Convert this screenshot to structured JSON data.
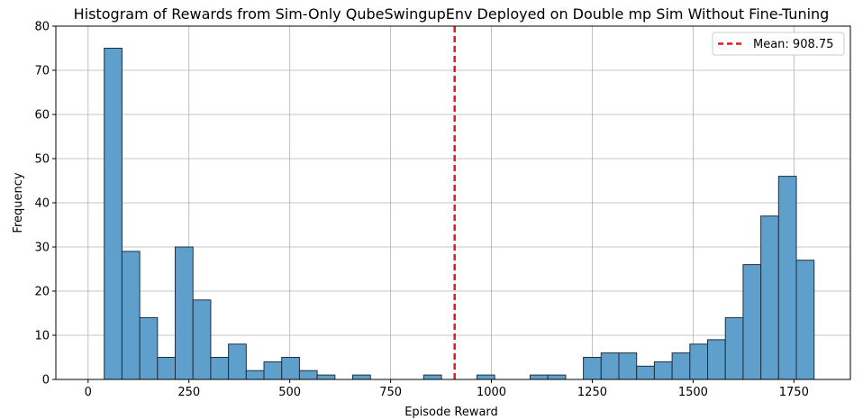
{
  "chart_data": {
    "type": "bar",
    "title": "Histogram of Rewards from Sim-Only QubeSwingupEnv Deployed on Double mp Sim Without Fine-Tuning",
    "xlabel": "Episode Reward",
    "ylabel": "Frequency",
    "xlim": [
      -80,
      1890
    ],
    "ylim": [
      0,
      80
    ],
    "xticks": [
      0,
      250,
      500,
      750,
      1000,
      1250,
      1500,
      1750
    ],
    "yticks": [
      0,
      10,
      20,
      30,
      40,
      50,
      60,
      70,
      80
    ],
    "grid": true,
    "bin_start": 40,
    "bin_width": 44,
    "bins": [
      {
        "x": 40,
        "count": 75
      },
      {
        "x": 84,
        "count": 29
      },
      {
        "x": 128,
        "count": 14
      },
      {
        "x": 172,
        "count": 5
      },
      {
        "x": 216,
        "count": 30
      },
      {
        "x": 260,
        "count": 18
      },
      {
        "x": 304,
        "count": 5
      },
      {
        "x": 348,
        "count": 8
      },
      {
        "x": 392,
        "count": 2
      },
      {
        "x": 436,
        "count": 4
      },
      {
        "x": 480,
        "count": 5
      },
      {
        "x": 524,
        "count": 2
      },
      {
        "x": 568,
        "count": 1
      },
      {
        "x": 612,
        "count": 0
      },
      {
        "x": 656,
        "count": 1
      },
      {
        "x": 700,
        "count": 0
      },
      {
        "x": 744,
        "count": 0
      },
      {
        "x": 788,
        "count": 0
      },
      {
        "x": 832,
        "count": 1
      },
      {
        "x": 876,
        "count": 0
      },
      {
        "x": 920,
        "count": 0
      },
      {
        "x": 964,
        "count": 1
      },
      {
        "x": 1008,
        "count": 0
      },
      {
        "x": 1052,
        "count": 0
      },
      {
        "x": 1096,
        "count": 1
      },
      {
        "x": 1140,
        "count": 1
      },
      {
        "x": 1184,
        "count": 0
      },
      {
        "x": 1228,
        "count": 5
      },
      {
        "x": 1272,
        "count": 6
      },
      {
        "x": 1316,
        "count": 6
      },
      {
        "x": 1360,
        "count": 3
      },
      {
        "x": 1404,
        "count": 4
      },
      {
        "x": 1448,
        "count": 6
      },
      {
        "x": 1492,
        "count": 8
      },
      {
        "x": 1536,
        "count": 9
      },
      {
        "x": 1580,
        "count": 14
      },
      {
        "x": 1624,
        "count": 26
      },
      {
        "x": 1668,
        "count": 37
      },
      {
        "x": 1712,
        "count": 46
      },
      {
        "x": 1756,
        "count": 27
      }
    ],
    "mean": {
      "value": 908.75,
      "label": "Mean: 908.75",
      "color": "#e31a1c",
      "style": "dashed"
    },
    "legend_position": "top-right",
    "bar_color": "#5f9fcb",
    "edge_color": "#1f2f3f"
  }
}
